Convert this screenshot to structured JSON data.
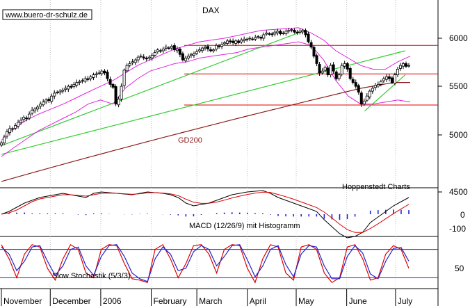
{
  "watermark": "www.buero-dr-schulz.de",
  "chart_data": [
    {
      "type": "candlestick",
      "title": "DAX",
      "source_note": "Hoppenstedt Charts",
      "x_axis": {
        "months": [
          "November",
          "December",
          "2006",
          "February",
          "March",
          "April",
          "May",
          "June",
          "July"
        ]
      },
      "y_axis": {
        "ticks": [
          6000,
          5500,
          5000,
          4500
        ],
        "range": [
          4400,
          6200
        ],
        "position": "right"
      },
      "close": [
        4925,
        4980,
        5030,
        5060,
        5055,
        5090,
        5120,
        5140,
        5170,
        5160,
        5200,
        5240,
        5250,
        5270,
        5300,
        5320,
        5340,
        5335,
        5380,
        5410,
        5420,
        5430,
        5440,
        5460,
        5480,
        5470,
        5500,
        5520,
        5530,
        5540,
        5560,
        5550,
        5580,
        5600,
        5610,
        5620,
        5640,
        5620,
        5560,
        5500,
        5470,
        5300,
        5350,
        5480,
        5650,
        5700,
        5720,
        5740,
        5760,
        5790,
        5800,
        5780,
        5770,
        5790,
        5810,
        5840,
        5870,
        5860,
        5880,
        5900,
        5890,
        5910,
        5870,
        5880,
        5820,
        5760,
        5780,
        5800,
        5820,
        5830,
        5850,
        5870,
        5890,
        5900,
        5880,
        5860,
        5870,
        5920,
        5910,
        5930,
        5950,
        5970,
        5960,
        5950,
        5970,
        5950,
        5980,
        5990,
        5990,
        6000,
        5990,
        6010,
        6020,
        6000,
        6040,
        6060,
        6050,
        6040,
        6070,
        6080,
        6050,
        6060,
        6080,
        6090,
        6100,
        6070,
        6060,
        6080,
        6090,
        6040,
        5960,
        5900,
        5800,
        5720,
        5620,
        5640,
        5680,
        5600,
        5700,
        5640,
        5560,
        5600,
        5700,
        5720,
        5660,
        5560,
        5520,
        5480,
        5420,
        5300,
        5330,
        5380,
        5430,
        5460,
        5490,
        5500,
        5530,
        5560,
        5580,
        5560,
        5520,
        5600,
        5660,
        5700,
        5720,
        5690,
        5700
      ],
      "series": [
        {
          "name": "GD200",
          "type": "line",
          "values": [
            4580,
            4620,
            4660,
            4700,
            4740,
            4780,
            4820,
            4860,
            4900,
            4940,
            4980,
            5020,
            5060,
            5100,
            5140,
            5180,
            5220,
            5260,
            5300,
            5340,
            5380,
            5420,
            5460,
            5490,
            5520,
            5520
          ]
        },
        {
          "type": "line",
          "values": [
            4950,
            5060,
            5140,
            5200,
            5250,
            5300,
            5360,
            5420,
            5480,
            5540,
            5620,
            5700,
            5760,
            5820,
            5880,
            5920,
            5960,
            5980,
            6000,
            6030,
            6060,
            6090,
            6100,
            6110,
            6120,
            6060,
            5980,
            5860,
            5780,
            5700,
            5660,
            5660,
            5740,
            5800
          ]
        },
        {
          "type": "line",
          "values": [
            4800,
            4880,
            4960,
            5040,
            5100,
            5160,
            5220,
            5300,
            5340,
            5300,
            5460,
            5560,
            5640,
            5680,
            5720,
            5740,
            5780,
            5800,
            5820,
            5840,
            5880,
            5900,
            5920,
            5940,
            5960,
            5920,
            5760,
            5540,
            5380,
            5300,
            5300,
            5320,
            5340,
            5320
          ]
        }
      ],
      "horizontal_lines": [
        5920,
        5610,
        5290
      ],
      "trendlines": [
        {
          "from": [
            "2005-11-01",
            4900
          ],
          "to": [
            "2006-05-05",
            6080
          ]
        },
        {
          "from": [
            "2005-11-01",
            4820
          ],
          "to": [
            "2006-07-07",
            5860
          ]
        },
        {
          "from": [
            "2006-06-12",
            5230
          ],
          "to": [
            "2006-07-07",
            5600
          ]
        }
      ],
      "annotations": [
        "GD200"
      ]
    },
    {
      "type": "area",
      "title": "MACD (12/26/9) mit Histogramm",
      "y_axis": {
        "ticks": [
          0,
          -100
        ],
        "position": "right"
      },
      "series": [
        {
          "type": "line",
          "values": [
            0,
            20,
            50,
            80,
            100,
            120,
            130,
            140,
            150,
            140,
            130,
            120,
            150,
            160,
            155,
            150,
            145,
            140,
            150,
            160,
            155,
            150,
            140,
            120,
            80,
            60,
            70,
            80,
            100,
            120,
            140,
            150,
            160,
            165,
            170,
            150,
            120,
            100,
            80,
            60,
            40,
            20,
            -40,
            -90,
            -140,
            -170,
            -160,
            -130,
            -60,
            -20,
            20,
            60,
            90,
            120
          ]
        },
        {
          "type": "line",
          "values": [
            0,
            10,
            30,
            60,
            90,
            110,
            120,
            130,
            140,
            140,
            135,
            130,
            140,
            150,
            152,
            150,
            147,
            143,
            147,
            154,
            155,
            152,
            146,
            134,
            108,
            86,
            78,
            79,
            87,
            101,
            117,
            130,
            142,
            151,
            159,
            156,
            142,
            126,
            108,
            88,
            68,
            48,
            15,
            -27,
            -72,
            -111,
            -131,
            -131,
            -103,
            -69,
            -33,
            4,
            38,
            71
          ]
        },
        {
          "type": "bar",
          "values": [
            0,
            10,
            20,
            20,
            10,
            10,
            10,
            10,
            10,
            0,
            -5,
            -10,
            10,
            10,
            3,
            0,
            -2,
            -3,
            3,
            6,
            0,
            -2,
            -6,
            -14,
            -28,
            -26,
            -8,
            1,
            13,
            19,
            23,
            20,
            18,
            14,
            11,
            -6,
            -22,
            -26,
            -28,
            -28,
            -28,
            -28,
            -55,
            -63,
            -68,
            -59,
            -29,
            1,
            43,
            49,
            53,
            56,
            52,
            49
          ]
        }
      ]
    },
    {
      "type": "line",
      "title": "Slow Stochastik (5/3/3)",
      "y_axis": {
        "ticks": [
          50
        ],
        "position": "right"
      },
      "reference_lines": [
        80,
        20
      ],
      "series": [
        {
          "type": "line",
          "values": [
            90,
            60,
            20,
            70,
            90,
            85,
            40,
            15,
            60,
            90,
            80,
            30,
            20,
            80,
            90,
            88,
            50,
            18,
            15,
            10,
            80,
            90,
            60,
            20,
            50,
            88,
            90,
            70,
            30,
            80,
            90,
            88,
            40,
            10,
            60,
            90,
            85,
            30,
            15,
            85,
            90,
            80,
            30,
            10,
            20,
            85,
            90,
            60,
            15,
            20,
            70,
            88,
            80,
            40
          ]
        },
        {
          "type": "line",
          "values": [
            85,
            70,
            35,
            55,
            85,
            88,
            55,
            25,
            45,
            80,
            85,
            45,
            25,
            65,
            88,
            90,
            65,
            30,
            18,
            12,
            60,
            85,
            70,
            35,
            40,
            75,
            88,
            80,
            45,
            65,
            88,
            90,
            58,
            22,
            45,
            80,
            88,
            48,
            22,
            70,
            88,
            85,
            45,
            18,
            18,
            65,
            88,
            72,
            28,
            18,
            55,
            82,
            84,
            55
          ]
        }
      ]
    }
  ]
}
